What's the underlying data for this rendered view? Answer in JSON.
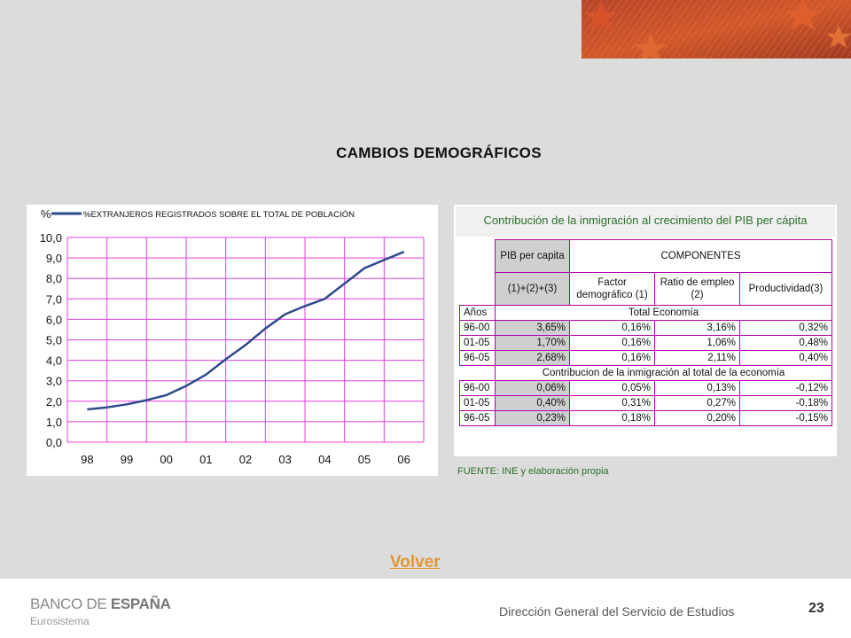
{
  "slide_title": "CAMBIOS DEMOGRÁFICOS",
  "volver_label": "Volver",
  "footer": {
    "logo_main_a": "BANCO DE ",
    "logo_main_b": "ESPAÑA",
    "logo_sub": "Eurosistema",
    "department": "Dirección General del Servicio de Estudios",
    "page_number": "23"
  },
  "colors": {
    "accent": "#e09632",
    "line": "#2e4a8c",
    "grid": "#e040e0",
    "table_border": "#b000b0",
    "note_green": "#2a6f2a"
  },
  "chart_data": {
    "type": "line",
    "unit_label": "%",
    "legend": "%EXTRANJEROS REGISTRADOS SOBRE EL TOTAL DE POBLACIÓN",
    "categories": [
      "98",
      "99",
      "00",
      "01",
      "02",
      "03",
      "04",
      "05",
      "06"
    ],
    "y_tick_labels": [
      "0,0",
      "1,0",
      "2,0",
      "3,0",
      "4,0",
      "5,0",
      "6,0",
      "7,0",
      "8,0",
      "9,0",
      "10,0"
    ],
    "ylim": [
      0,
      10
    ],
    "grid": true,
    "series": [
      {
        "name": "%EXTRANJEROS REGISTRADOS SOBRE EL TOTAL DE POBLACIÓN",
        "x": [
          0,
          0.5,
          1,
          1.5,
          2,
          2.5,
          3,
          3.5,
          4,
          4.5,
          5,
          5.5,
          6,
          6.5,
          7,
          7.5,
          8
        ],
        "values": [
          1.6,
          1.7,
          1.85,
          2.05,
          2.3,
          2.75,
          3.3,
          4.05,
          4.75,
          5.55,
          6.25,
          6.65,
          7.0,
          7.75,
          8.5,
          8.9,
          9.3
        ]
      }
    ]
  },
  "table": {
    "title": "Contribución de la inmigración al crecimiento del PIB per cápita",
    "pib_header": "PIB per capita",
    "componentes_header": "COMPONENTES",
    "formula": "(1)+(2)+(3)",
    "col_factor": "Factor demográfico (1)",
    "col_ratio": "Ratio de empleo  (2)",
    "col_product": "Productividad(3)",
    "anos_label": "Años",
    "section1": "Total Economía",
    "section2": "Contribucion de la inmigración al total de la  economía",
    "rows1": [
      {
        "period": "96-00",
        "pib": "3,65%",
        "factor": "0,16%",
        "ratio": "3,16%",
        "prod": "0,32%"
      },
      {
        "period": "01-05",
        "pib": "1,70%",
        "factor": "0,16%",
        "ratio": "1,06%",
        "prod": "0,48%"
      },
      {
        "period": "96-05",
        "pib": "2,68%",
        "factor": "0,16%",
        "ratio": "2,11%",
        "prod": "0,40%"
      }
    ],
    "rows2": [
      {
        "period": "96-00",
        "pib": "0,06%",
        "factor": "0,05%",
        "ratio": "0,13%",
        "prod": "-0,12%"
      },
      {
        "period": "01-05",
        "pib": "0,40%",
        "factor": "0,31%",
        "ratio": "0,27%",
        "prod": "-0,18%"
      },
      {
        "period": "96-05",
        "pib": "0,23%",
        "factor": "0,18%",
        "ratio": "0,20%",
        "prod": "-0,15%"
      }
    ],
    "source": "FUENTE: INE y elaboración propia"
  }
}
